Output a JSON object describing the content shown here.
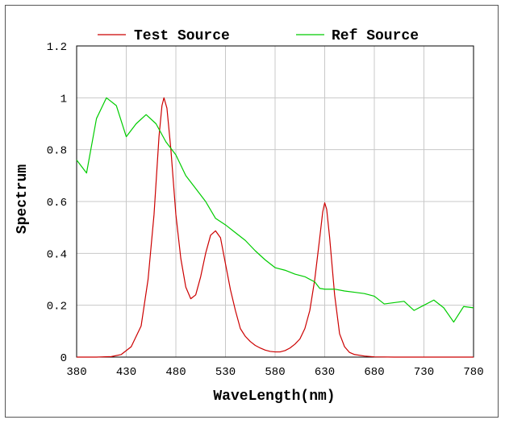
{
  "chart_data": {
    "type": "line",
    "title": "",
    "xlabel": "WaveLength(nm)",
    "ylabel": "Spectrum",
    "xlim": [
      380,
      780
    ],
    "ylim": [
      0,
      1.2
    ],
    "x_ticks": [
      380,
      430,
      480,
      530,
      580,
      630,
      680,
      730,
      780
    ],
    "x_tick_labels": [
      "380",
      "430",
      "480",
      "530",
      "580",
      "630",
      "680",
      "730",
      "780"
    ],
    "y_ticks": [
      0,
      0.2,
      0.4,
      0.6,
      0.8,
      1,
      1.2
    ],
    "y_tick_labels": [
      "0",
      "0.2",
      "0.4",
      "0.6",
      "0.8",
      "1",
      "1.2"
    ],
    "grid": true,
    "legend_position": "top",
    "series": [
      {
        "name": "Test Source",
        "color": "#cc0000",
        "points": [
          [
            380,
            0
          ],
          [
            400,
            0
          ],
          [
            415,
            0.002
          ],
          [
            425,
            0.01
          ],
          [
            435,
            0.04
          ],
          [
            445,
            0.12
          ],
          [
            452,
            0.3
          ],
          [
            458,
            0.55
          ],
          [
            463,
            0.85
          ],
          [
            466,
            0.97
          ],
          [
            468,
            1.0
          ],
          [
            471,
            0.96
          ],
          [
            475,
            0.8
          ],
          [
            480,
            0.55
          ],
          [
            485,
            0.38
          ],
          [
            490,
            0.27
          ],
          [
            495,
            0.225
          ],
          [
            500,
            0.24
          ],
          [
            505,
            0.31
          ],
          [
            510,
            0.4
          ],
          [
            515,
            0.47
          ],
          [
            520,
            0.487
          ],
          [
            525,
            0.46
          ],
          [
            530,
            0.36
          ],
          [
            535,
            0.26
          ],
          [
            540,
            0.18
          ],
          [
            545,
            0.11
          ],
          [
            550,
            0.08
          ],
          [
            555,
            0.06
          ],
          [
            560,
            0.045
          ],
          [
            565,
            0.035
          ],
          [
            570,
            0.027
          ],
          [
            575,
            0.022
          ],
          [
            580,
            0.02
          ],
          [
            585,
            0.02
          ],
          [
            590,
            0.025
          ],
          [
            595,
            0.035
          ],
          [
            600,
            0.05
          ],
          [
            605,
            0.07
          ],
          [
            610,
            0.11
          ],
          [
            615,
            0.18
          ],
          [
            620,
            0.3
          ],
          [
            625,
            0.46
          ],
          [
            628,
            0.56
          ],
          [
            630,
            0.595
          ],
          [
            632,
            0.57
          ],
          [
            635,
            0.46
          ],
          [
            640,
            0.24
          ],
          [
            645,
            0.09
          ],
          [
            650,
            0.04
          ],
          [
            655,
            0.018
          ],
          [
            660,
            0.01
          ],
          [
            670,
            0.004
          ],
          [
            680,
            0.001
          ],
          [
            700,
            0
          ],
          [
            780,
            0
          ]
        ]
      },
      {
        "name": "Ref Source",
        "color": "#00cc00",
        "points": [
          [
            380,
            0.76
          ],
          [
            390,
            0.71
          ],
          [
            400,
            0.92
          ],
          [
            410,
            1.0
          ],
          [
            420,
            0.97
          ],
          [
            430,
            0.85
          ],
          [
            440,
            0.9
          ],
          [
            450,
            0.935
          ],
          [
            460,
            0.9
          ],
          [
            470,
            0.83
          ],
          [
            480,
            0.78
          ],
          [
            490,
            0.7
          ],
          [
            500,
            0.65
          ],
          [
            510,
            0.6
          ],
          [
            520,
            0.535
          ],
          [
            530,
            0.51
          ],
          [
            540,
            0.48
          ],
          [
            550,
            0.45
          ],
          [
            560,
            0.41
          ],
          [
            570,
            0.375
          ],
          [
            580,
            0.345
          ],
          [
            590,
            0.335
          ],
          [
            600,
            0.32
          ],
          [
            610,
            0.31
          ],
          [
            620,
            0.29
          ],
          [
            625,
            0.265
          ],
          [
            630,
            0.262
          ],
          [
            640,
            0.262
          ],
          [
            650,
            0.255
          ],
          [
            660,
            0.25
          ],
          [
            670,
            0.245
          ],
          [
            680,
            0.235
          ],
          [
            690,
            0.205
          ],
          [
            700,
            0.21
          ],
          [
            710,
            0.215
          ],
          [
            720,
            0.18
          ],
          [
            730,
            0.2
          ],
          [
            740,
            0.22
          ],
          [
            750,
            0.19
          ],
          [
            760,
            0.135
          ],
          [
            770,
            0.195
          ],
          [
            780,
            0.19
          ]
        ]
      }
    ]
  }
}
